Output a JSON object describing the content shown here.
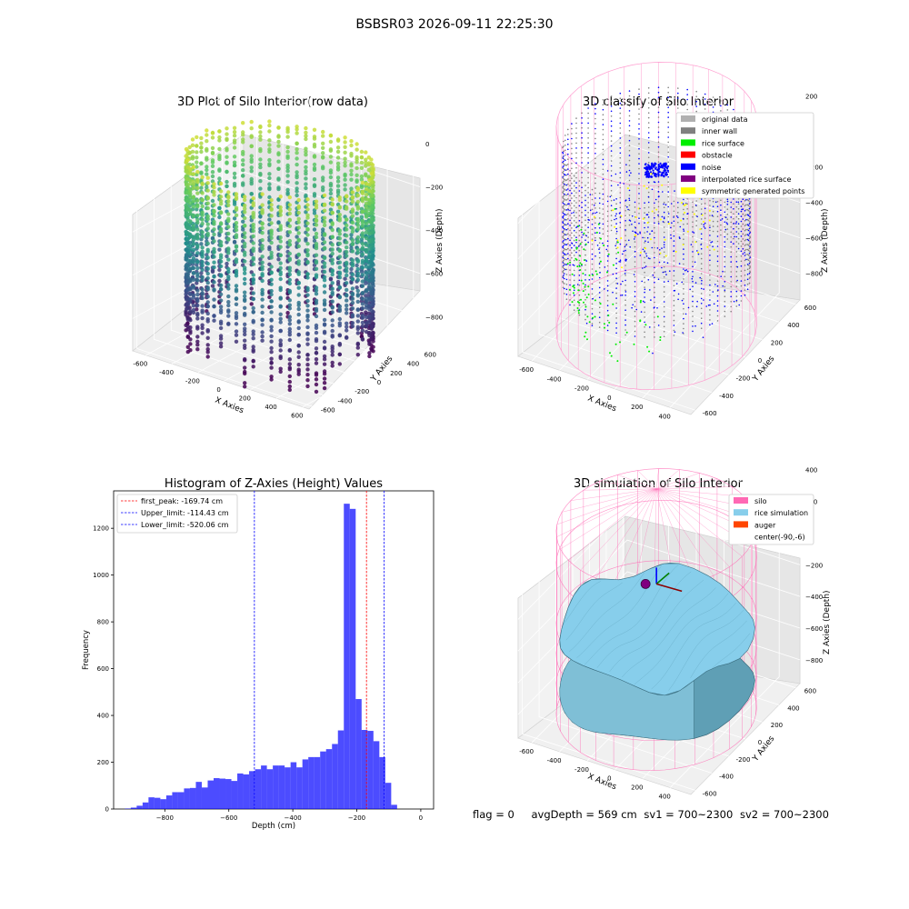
{
  "figure": {
    "title": "BSBSR03 2026-09-11 22:25:30",
    "status": {
      "flag": "flag = 0",
      "avg_depth": "avgDepth = 569 cm",
      "sv1": "sv1 = 700~2300",
      "sv2": "sv2 = 700~2300"
    }
  },
  "chart_data": [
    {
      "type": "scatter",
      "title": "3D Plot of Silo Interior(row data)",
      "xlabel": "X Axies",
      "ylabel": "Y Axies",
      "zlabel": "Z Axies (Depth)",
      "x_ticks": [
        "-600",
        "-400",
        "-200",
        "0",
        "200",
        "400",
        "600"
      ],
      "y_ticks": [
        "-600",
        "-400",
        "-200",
        "0",
        "200",
        "400",
        "600"
      ],
      "z_ticks": [
        "0",
        "−200",
        "−400",
        "−600",
        "−800"
      ],
      "colormap": "viridis",
      "radius_approx": 600,
      "z_range": [
        -900,
        0
      ]
    },
    {
      "type": "scatter",
      "title": "3D classify of Silo Interior",
      "xlabel": "X Axies",
      "ylabel": "Y Axies",
      "zlabel": "Z Axies (Depth)",
      "x_ticks": [
        "-600",
        "-400",
        "-200",
        "0",
        "200",
        "400"
      ],
      "y_ticks": [
        "-600",
        "-400",
        "-200",
        "0",
        "200",
        "400",
        "600"
      ],
      "z_ticks": [
        "200",
        "0",
        "−200",
        "−400",
        "−600",
        "−800"
      ],
      "legend_position": "top-right",
      "legend": [
        {
          "label": "original data",
          "color": "#b0b0b0"
        },
        {
          "label": "inner wall",
          "color": "#808080"
        },
        {
          "label": "rice surface",
          "color": "#00ee00"
        },
        {
          "label": "obstacle",
          "color": "#ff0000"
        },
        {
          "label": "noise",
          "color": "#0000ff"
        },
        {
          "label": "interpolated rice surface",
          "color": "#800080"
        },
        {
          "label": "symmetric generated points",
          "color": "#ffff00"
        }
      ]
    },
    {
      "type": "bar",
      "title": "Histogram of Z-Axies (Height) Values",
      "xlabel": "Depth (cm)",
      "ylabel": "Frequency",
      "xlim": [
        -960,
        40
      ],
      "ylim": [
        0,
        1360
      ],
      "x_ticks": [
        -800,
        -600,
        -400,
        -200,
        0
      ],
      "y_ticks": [
        0,
        200,
        400,
        600,
        800,
        1000,
        1200
      ],
      "bar_color": "#0000ff",
      "bin_width": 18.5,
      "bin_start": -925,
      "values": [
        2,
        6,
        14,
        28,
        50,
        48,
        42,
        58,
        72,
        72,
        88,
        90,
        116,
        92,
        122,
        132,
        130,
        128,
        120,
        152,
        148,
        162,
        170,
        186,
        170,
        186,
        186,
        178,
        200,
        178,
        212,
        222,
        222,
        246,
        256,
        278,
        336,
        1305,
        1283,
        470,
        338,
        334,
        290,
        222,
        112,
        18
      ],
      "vlines": [
        {
          "label": "first_peak: -169.74 cm",
          "x": -169.74,
          "color": "#ff0000"
        },
        {
          "label": "Upper_limit: -114.43 cm",
          "x": -114.43,
          "color": "#0000ff"
        },
        {
          "label": "Lower_limit: -520.06 cm",
          "x": -520.06,
          "color": "#0000ff"
        }
      ],
      "legend_position": "top-left"
    },
    {
      "type": "surface",
      "title": "3D simulation of Silo Interior",
      "xlabel": "X Axies",
      "ylabel": "Y Axies",
      "zlabel": "Z Axies (Depth)",
      "x_ticks": [
        "-600",
        "-400",
        "-200",
        "0",
        "200",
        "400"
      ],
      "y_ticks": [
        "-600",
        "-400",
        "-200",
        "0",
        "200",
        "400",
        "600"
      ],
      "z_ticks": [
        "400",
        "200",
        "0",
        "−200",
        "−400",
        "−600",
        "−800"
      ],
      "legend_position": "top-right",
      "legend": [
        {
          "label": "silo",
          "color": "#ff69b4"
        },
        {
          "label": "rice simulation",
          "color": "#87ceeb"
        },
        {
          "label": "auger",
          "color": "#ff4500"
        },
        {
          "label": "center(-90,-6)",
          "color": "#ffffff"
        }
      ]
    }
  ]
}
